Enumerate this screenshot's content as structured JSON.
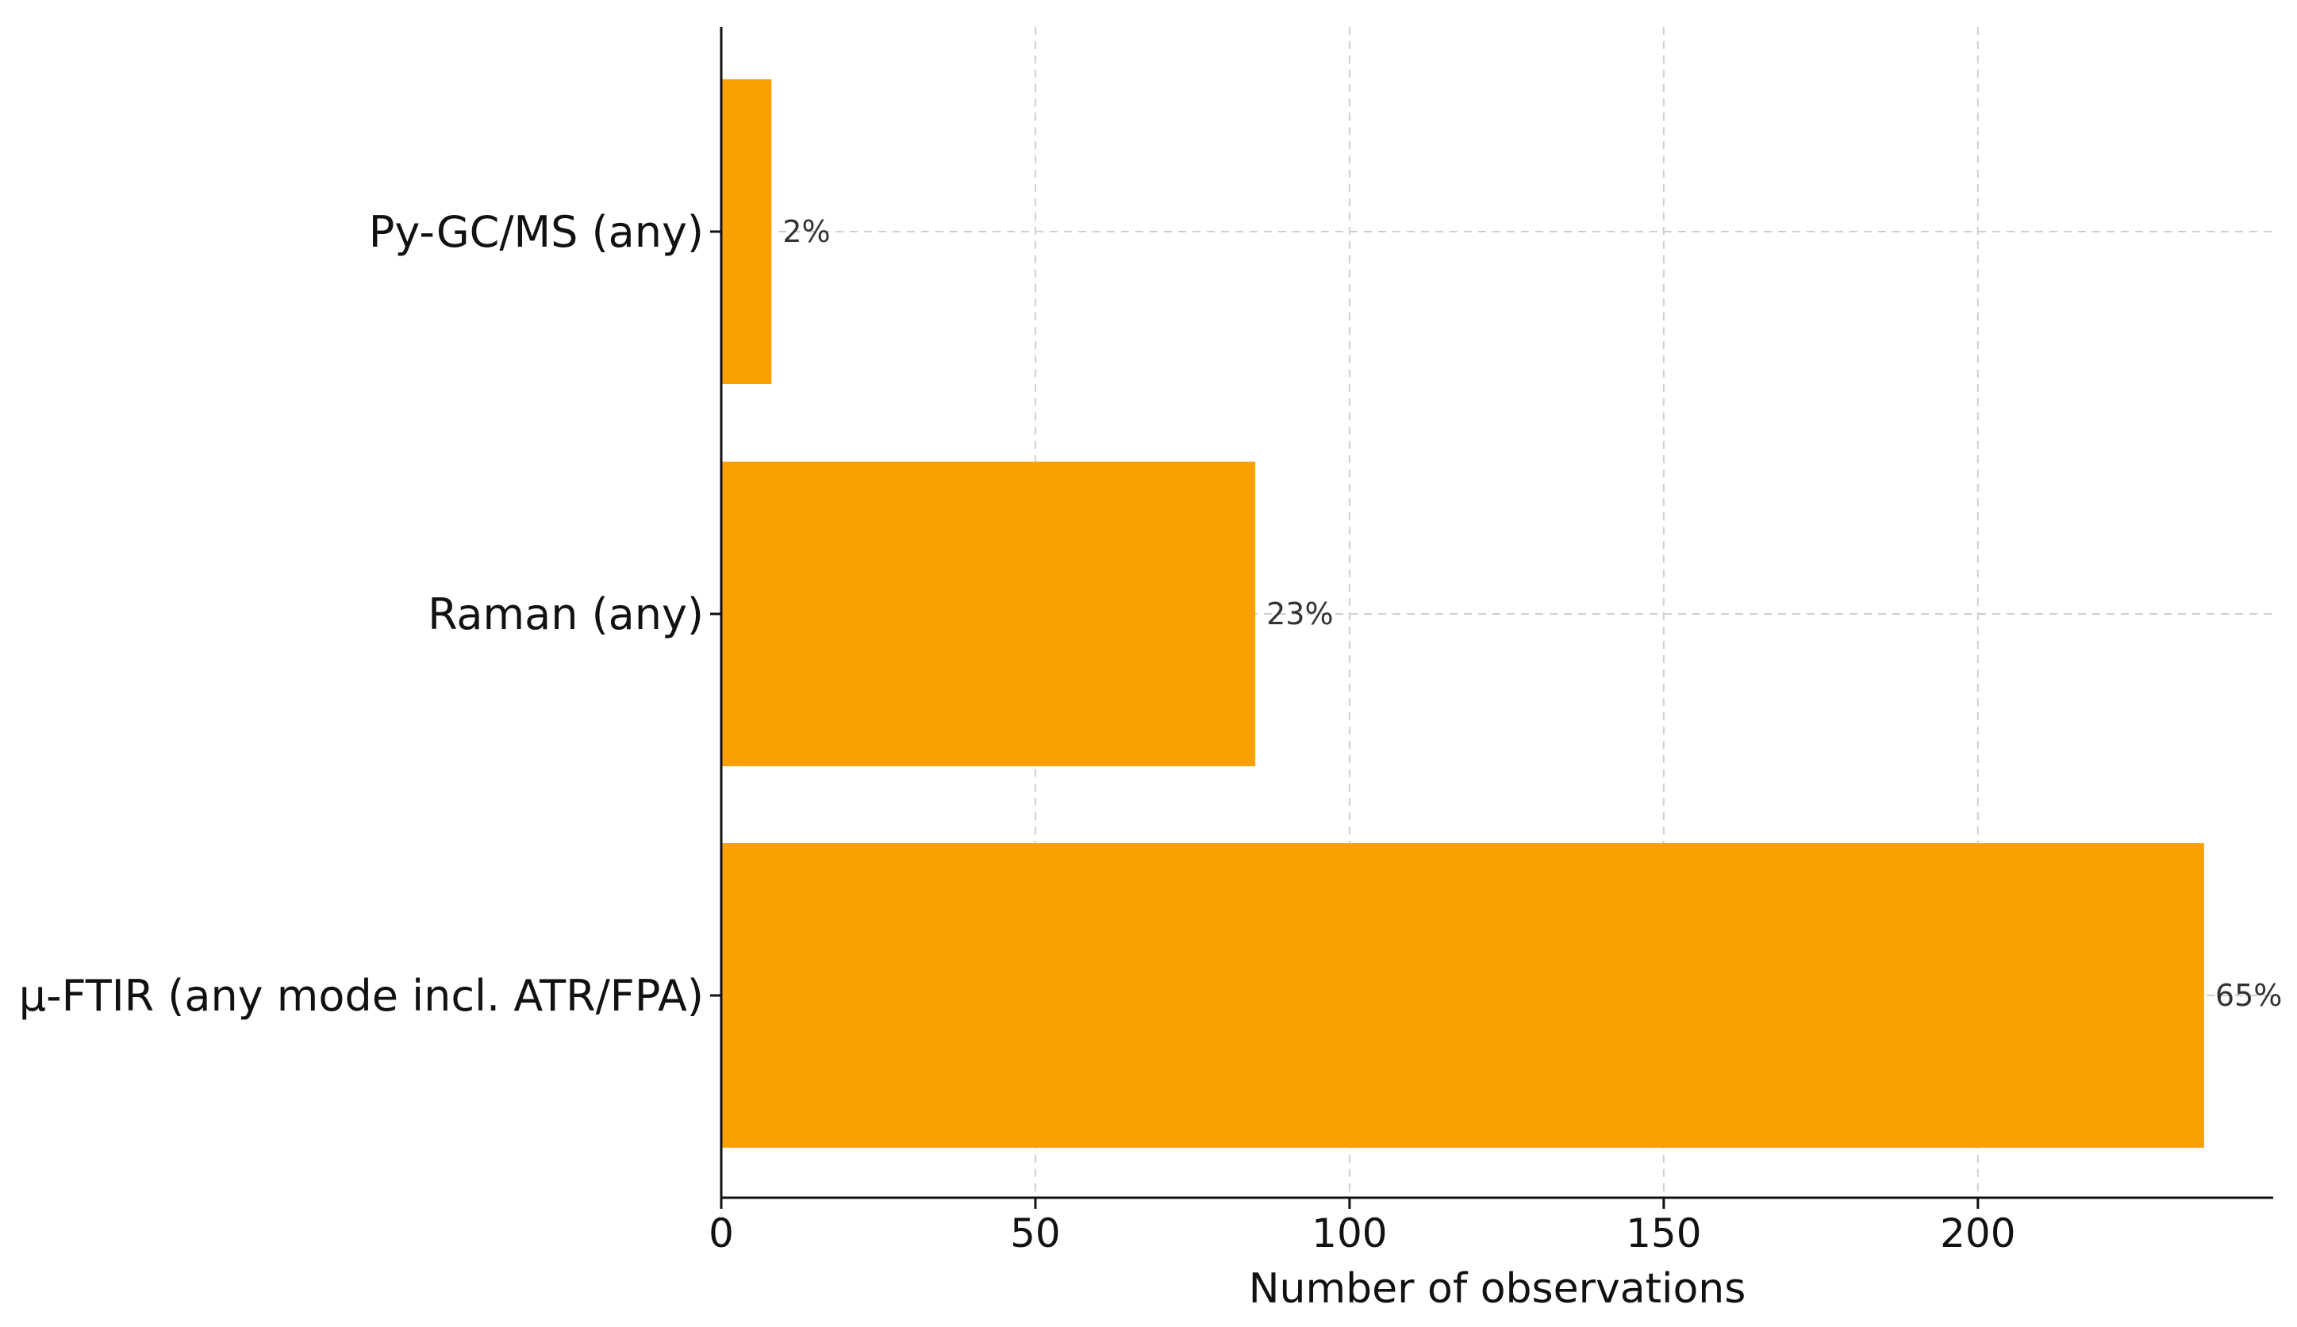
{
  "chart_data": {
    "type": "bar",
    "orientation": "horizontal",
    "categories": [
      "Py-GC/MS (any)",
      "Raman (any)",
      "μ-FTIR (any mode incl. ATR/FPA)"
    ],
    "values": [
      8,
      85,
      236
    ],
    "percent_labels": [
      "2%",
      "23%",
      "65%"
    ],
    "title": "",
    "xlabel": "Number of observations",
    "ylabel": "",
    "xlim": [
      0,
      247
    ],
    "xticks": [
      0,
      50,
      100,
      150,
      200
    ],
    "grid": true,
    "legend": "none",
    "bar_color": "#FBA003"
  }
}
